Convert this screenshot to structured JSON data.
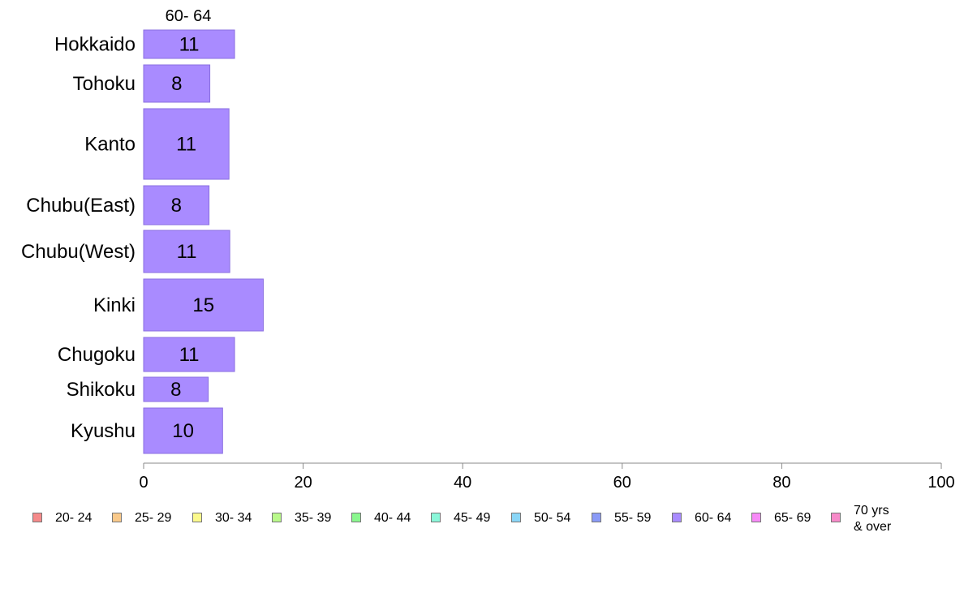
{
  "chart_data": {
    "type": "bar",
    "orientation": "horizontal",
    "column_header": "60- 64",
    "categories": [
      "Hokkaido",
      "Tohoku",
      "Kanto",
      "Chubu(East)",
      "Chubu(West)",
      "Kinki",
      "Chugoku",
      "Shikoku",
      "Kyushu"
    ],
    "series": [
      {
        "name": "60- 64",
        "color": "#a98bff",
        "values": [
          11,
          8,
          11,
          8,
          11,
          15,
          11,
          8,
          10
        ],
        "display_values": [
          11.4,
          8.3,
          10.7,
          8.2,
          10.8,
          15.0,
          11.4,
          8.1,
          9.9
        ]
      }
    ],
    "xlim": [
      0,
      100
    ],
    "xticks": [
      "0",
      "20",
      "40",
      "60",
      "80",
      "100"
    ],
    "grid": false,
    "legend_position": "bottom",
    "legend": [
      {
        "label": "20- 24",
        "color": "#f58a8a"
      },
      {
        "label": "25- 29",
        "color": "#f9c98a"
      },
      {
        "label": "30- 34",
        "color": "#fbf98c"
      },
      {
        "label": "35- 39",
        "color": "#b9f98a"
      },
      {
        "label": "40- 44",
        "color": "#8af78e"
      },
      {
        "label": "45- 49",
        "color": "#8af7d9"
      },
      {
        "label": "50- 54",
        "color": "#8ad6f7"
      },
      {
        "label": "55- 59",
        "color": "#8a9af7"
      },
      {
        "label": "60- 64",
        "color": "#a98bff"
      },
      {
        "label": "65- 69",
        "color": "#f78af7"
      },
      {
        "label": "70 yrs\n& over",
        "color": "#f78ac9"
      }
    ]
  }
}
